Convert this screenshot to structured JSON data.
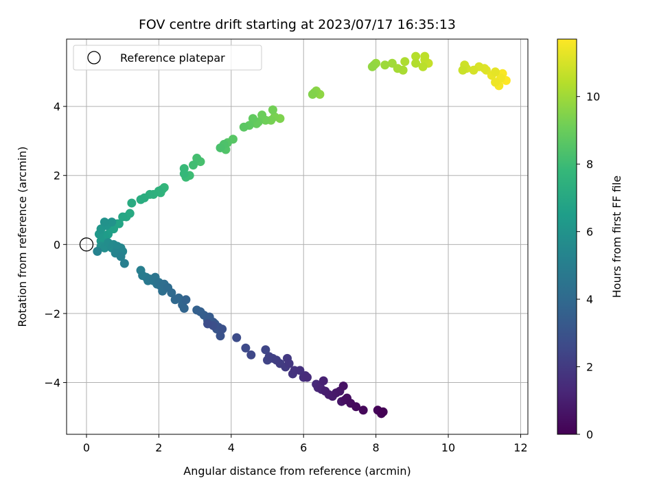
{
  "chart_data": {
    "type": "scatter",
    "title": "FOV centre drift starting at 2023/07/17 16:35:13",
    "xlabel": "Angular distance from reference (arcmin)",
    "ylabel": "Rotation from reference (arcmin)",
    "xlim": [
      -0.55,
      12.2
    ],
    "ylim": [
      -5.5,
      5.95
    ],
    "x_ticks": [
      0,
      2,
      4,
      6,
      8,
      10,
      12
    ],
    "x_tick_labels": [
      "0",
      "2",
      "4",
      "6",
      "8",
      "10",
      "12"
    ],
    "y_ticks": [
      -4,
      -2,
      0,
      2,
      4
    ],
    "y_tick_labels": [
      "−4",
      "−2",
      "0",
      "2",
      "4"
    ],
    "grid": true,
    "legend": {
      "position": "upper-left",
      "entries": [
        "Reference platepar"
      ]
    },
    "reference_point": {
      "x": 0,
      "y": 0
    },
    "colorbar": {
      "label": "Hours from first FF file",
      "range": [
        0,
        11.7
      ],
      "ticks": [
        0,
        2,
        4,
        6,
        8,
        10
      ],
      "tick_labels": [
        "0",
        "2",
        "4",
        "6",
        "8",
        "10"
      ],
      "colormap": "viridis",
      "colors": [
        "#440154",
        "#482878",
        "#3e4a89",
        "#31688e",
        "#26828e",
        "#1f9e89",
        "#35b779",
        "#6ece58",
        "#b5de2b",
        "#fde725"
      ]
    },
    "series": [
      {
        "points": [
          [
            11.6,
            4.75
          ],
          [
            11.5,
            4.95
          ],
          [
            11.4,
            4.6
          ],
          [
            11.45,
            4.82
          ],
          [
            11.3,
            4.7
          ],
          [
            11.2,
            4.9
          ],
          [
            11.3,
            5.0
          ],
          [
            11.05,
            5.05
          ],
          [
            11.0,
            5.1
          ],
          [
            10.85,
            5.15
          ],
          [
            10.7,
            5.05
          ],
          [
            10.5,
            5.1
          ],
          [
            10.45,
            5.2
          ],
          [
            10.4,
            5.05
          ],
          [
            9.45,
            5.25
          ],
          [
            9.35,
            5.35
          ],
          [
            9.35,
            5.45
          ],
          [
            9.3,
            5.15
          ],
          [
            9.1,
            5.45
          ],
          [
            9.1,
            5.25
          ],
          [
            8.8,
            5.3
          ],
          [
            8.75,
            5.05
          ],
          [
            8.6,
            5.1
          ],
          [
            8.45,
            5.25
          ],
          [
            8.25,
            5.2
          ],
          [
            8.0,
            5.25
          ],
          [
            7.95,
            5.2
          ],
          [
            7.9,
            5.15
          ],
          [
            6.45,
            4.35
          ],
          [
            6.35,
            4.45
          ],
          [
            6.3,
            4.4
          ],
          [
            6.25,
            4.35
          ],
          [
            5.35,
            3.65
          ],
          [
            5.2,
            3.7
          ],
          [
            5.1,
            3.6
          ],
          [
            5.15,
            3.9
          ],
          [
            4.95,
            3.6
          ],
          [
            4.85,
            3.75
          ],
          [
            4.75,
            3.55
          ],
          [
            4.7,
            3.5
          ],
          [
            4.6,
            3.65
          ],
          [
            4.5,
            3.45
          ],
          [
            4.35,
            3.4
          ],
          [
            4.05,
            3.05
          ],
          [
            3.9,
            2.95
          ],
          [
            3.85,
            2.75
          ],
          [
            3.8,
            2.9
          ],
          [
            3.7,
            2.8
          ],
          [
            3.15,
            2.4
          ],
          [
            3.05,
            2.5
          ],
          [
            2.95,
            2.3
          ],
          [
            2.85,
            2.0
          ],
          [
            2.75,
            1.95
          ],
          [
            2.7,
            2.2
          ],
          [
            2.7,
            2.05
          ],
          [
            2.15,
            1.65
          ],
          [
            2.1,
            1.6
          ],
          [
            2.05,
            1.5
          ],
          [
            2.0,
            1.55
          ],
          [
            1.85,
            1.45
          ],
          [
            1.75,
            1.45
          ],
          [
            1.6,
            1.35
          ],
          [
            1.5,
            1.3
          ],
          [
            1.25,
            1.2
          ],
          [
            1.2,
            0.9
          ],
          [
            1.1,
            0.8
          ],
          [
            1.0,
            0.8
          ],
          [
            0.9,
            0.6
          ],
          [
            0.85,
            0.6
          ],
          [
            0.75,
            0.45
          ],
          [
            0.65,
            0.5
          ],
          [
            0.6,
            0.3
          ],
          [
            0.55,
            0.25
          ],
          [
            0.5,
            0.25
          ],
          [
            0.45,
            0.1
          ],
          [
            0.4,
            0.1
          ],
          [
            0.35,
            0.3
          ],
          [
            0.4,
            0.45
          ],
          [
            0.55,
            0.55
          ],
          [
            0.7,
            0.65
          ],
          [
            0.5,
            0.65
          ],
          [
            0.4,
            -0.05
          ],
          [
            0.5,
            -0.1
          ],
          [
            0.6,
            0.05
          ],
          [
            0.7,
            -0.1
          ],
          [
            0.75,
            0.0
          ],
          [
            0.85,
            -0.05
          ],
          [
            0.95,
            -0.1
          ],
          [
            1.0,
            -0.2
          ],
          [
            0.8,
            -0.25
          ],
          [
            0.3,
            -0.2
          ],
          [
            0.95,
            -0.35
          ],
          [
            1.05,
            -0.55
          ],
          [
            1.5,
            -0.75
          ],
          [
            1.55,
            -0.9
          ],
          [
            1.65,
            -0.95
          ],
          [
            1.7,
            -1.05
          ],
          [
            1.75,
            -1.0
          ],
          [
            1.85,
            -1.05
          ],
          [
            1.9,
            -0.95
          ],
          [
            1.95,
            -1.15
          ],
          [
            2.0,
            -1.1
          ],
          [
            2.05,
            -1.2
          ],
          [
            2.1,
            -1.35
          ],
          [
            2.15,
            -1.15
          ],
          [
            2.25,
            -1.25
          ],
          [
            2.35,
            -1.4
          ],
          [
            2.45,
            -1.6
          ],
          [
            2.55,
            -1.55
          ],
          [
            2.65,
            -1.75
          ],
          [
            2.7,
            -1.85
          ],
          [
            2.75,
            -1.6
          ],
          [
            3.05,
            -1.9
          ],
          [
            3.15,
            -1.95
          ],
          [
            3.25,
            -2.05
          ],
          [
            3.35,
            -2.2
          ],
          [
            3.4,
            -2.1
          ],
          [
            3.5,
            -2.25
          ],
          [
            3.55,
            -2.3
          ],
          [
            3.6,
            -2.45
          ],
          [
            3.65,
            -2.4
          ],
          [
            3.7,
            -2.65
          ],
          [
            3.75,
            -2.45
          ],
          [
            3.5,
            -2.35
          ],
          [
            3.35,
            -2.3
          ],
          [
            4.15,
            -2.7
          ],
          [
            4.4,
            -3.0
          ],
          [
            4.55,
            -3.2
          ],
          [
            4.95,
            -3.05
          ],
          [
            5.0,
            -3.35
          ],
          [
            5.05,
            -3.25
          ],
          [
            5.15,
            -3.3
          ],
          [
            5.25,
            -3.35
          ],
          [
            5.35,
            -3.45
          ],
          [
            5.5,
            -3.55
          ],
          [
            5.55,
            -3.3
          ],
          [
            5.6,
            -3.45
          ],
          [
            5.7,
            -3.75
          ],
          [
            5.75,
            -3.65
          ],
          [
            5.9,
            -3.65
          ],
          [
            6.0,
            -3.85
          ],
          [
            6.05,
            -3.8
          ],
          [
            6.1,
            -3.85
          ],
          [
            6.35,
            -4.05
          ],
          [
            6.4,
            -4.15
          ],
          [
            6.45,
            -4.1
          ],
          [
            6.5,
            -4.2
          ],
          [
            6.55,
            -3.95
          ],
          [
            6.6,
            -4.25
          ],
          [
            6.7,
            -4.35
          ],
          [
            6.8,
            -4.4
          ],
          [
            6.9,
            -4.3
          ],
          [
            7.0,
            -4.25
          ],
          [
            7.05,
            -4.55
          ],
          [
            7.1,
            -4.1
          ],
          [
            7.15,
            -4.5
          ],
          [
            7.2,
            -4.45
          ],
          [
            7.3,
            -4.6
          ],
          [
            7.45,
            -4.7
          ],
          [
            7.65,
            -4.8
          ],
          [
            8.05,
            -4.8
          ],
          [
            8.15,
            -4.9
          ],
          [
            8.2,
            -4.85
          ]
        ]
      }
    ]
  }
}
